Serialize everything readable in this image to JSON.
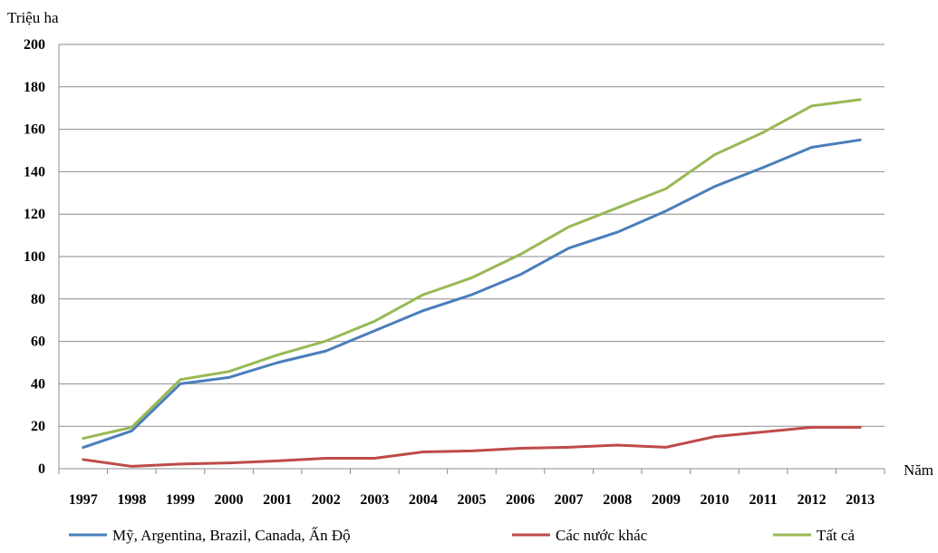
{
  "chart_data": {
    "type": "line",
    "ylabel": "Triệu ha",
    "xlabel": "Năm",
    "ylim": [
      0,
      200
    ],
    "yticks": [
      0,
      20,
      40,
      60,
      80,
      100,
      120,
      140,
      160,
      180,
      200
    ],
    "categories": [
      "1997",
      "1998",
      "1999",
      "2000",
      "2001",
      "2002",
      "2003",
      "2004",
      "2005",
      "2006",
      "2007",
      "2008",
      "2009",
      "2010",
      "2011",
      "2012",
      "2013"
    ],
    "grid": true,
    "legend_position": "bottom",
    "series": [
      {
        "name": "Mỹ, Argentina, Brazil, Canada, Ấn Độ",
        "color": "#4a7ebb",
        "values": [
          10,
          17.8,
          40,
          43,
          50,
          55.5,
          65,
          74.5,
          82,
          91.5,
          104,
          111.5,
          121.5,
          133,
          142,
          151.5,
          155
        ]
      },
      {
        "name": "Các nước khác",
        "color": "#be4b48",
        "values": [
          4.3,
          1.1,
          2.2,
          2.7,
          3.7,
          4.9,
          4.9,
          7.9,
          8.4,
          9.6,
          10.1,
          11.1,
          10.1,
          15.1,
          17.3,
          19.5,
          19.5
        ]
      },
      {
        "name": "Tất cả",
        "color": "#98b954",
        "values": [
          14.3,
          19.5,
          42,
          45.8,
          53.6,
          60.2,
          69.5,
          82,
          90,
          101,
          114,
          123,
          132,
          148,
          158.5,
          171,
          174
        ]
      }
    ]
  }
}
